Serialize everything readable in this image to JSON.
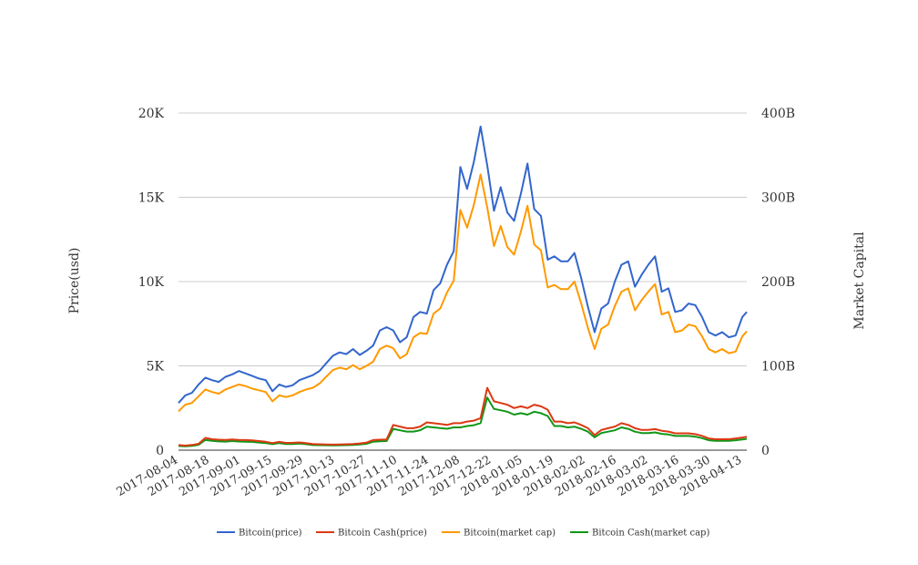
{
  "chart_data": {
    "type": "line",
    "title": "",
    "xlabel": "",
    "ylabel": "Price(usd)",
    "y2label": "Market Capital",
    "x_ticks": [
      "2017-08-04",
      "2017-08-18",
      "2017-09-01",
      "2017-09-15",
      "2017-09-29",
      "2017-10-13",
      "2017-10-27",
      "2017-11-10",
      "2017-11-24",
      "2017-12-08",
      "2017-12-22",
      "2018-01-05",
      "2018-01-19",
      "2018-02-02",
      "2018-02-16",
      "2018-03-02",
      "2018-03-16",
      "2018-03-30",
      "2018-04-13"
    ],
    "x_range": [
      "2017-08-04",
      "2018-04-15"
    ],
    "y_ticks": [
      "0",
      "5K",
      "10K",
      "15K",
      "20K"
    ],
    "y_range": [
      0,
      20000
    ],
    "y2_ticks": [
      "0",
      "100B",
      "200B",
      "300B",
      "400B"
    ],
    "y2_range": [
      0,
      400
    ],
    "y2_unit": "B",
    "grid": true,
    "legend_position": "bottom",
    "x": [
      "2017-08-04",
      "2017-08-07",
      "2017-08-10",
      "2017-08-13",
      "2017-08-16",
      "2017-08-19",
      "2017-08-22",
      "2017-08-25",
      "2017-08-28",
      "2017-08-31",
      "2017-09-03",
      "2017-09-06",
      "2017-09-09",
      "2017-09-12",
      "2017-09-15",
      "2017-09-18",
      "2017-09-21",
      "2017-09-24",
      "2017-09-27",
      "2017-09-30",
      "2017-10-03",
      "2017-10-06",
      "2017-10-09",
      "2017-10-12",
      "2017-10-15",
      "2017-10-18",
      "2017-10-21",
      "2017-10-24",
      "2017-10-27",
      "2017-10-30",
      "2017-11-02",
      "2017-11-05",
      "2017-11-08",
      "2017-11-11",
      "2017-11-14",
      "2017-11-17",
      "2017-11-20",
      "2017-11-23",
      "2017-11-26",
      "2017-11-29",
      "2017-12-02",
      "2017-12-05",
      "2017-12-08",
      "2017-12-11",
      "2017-12-14",
      "2017-12-17",
      "2017-12-20",
      "2017-12-23",
      "2017-12-26",
      "2017-12-29",
      "2018-01-01",
      "2018-01-04",
      "2018-01-07",
      "2018-01-10",
      "2018-01-13",
      "2018-01-16",
      "2018-01-19",
      "2018-01-22",
      "2018-01-25",
      "2018-01-28",
      "2018-01-31",
      "2018-02-03",
      "2018-02-06",
      "2018-02-09",
      "2018-02-12",
      "2018-02-15",
      "2018-02-18",
      "2018-02-21",
      "2018-02-24",
      "2018-02-27",
      "2018-03-02",
      "2018-03-05",
      "2018-03-08",
      "2018-03-11",
      "2018-03-14",
      "2018-03-17",
      "2018-03-20",
      "2018-03-23",
      "2018-03-26",
      "2018-03-29",
      "2018-04-01",
      "2018-04-04",
      "2018-04-07",
      "2018-04-10",
      "2018-04-13",
      "2018-04-15"
    ],
    "series": [
      {
        "name": "Bitcoin(price)",
        "color": "#3366cc",
        "axis": "left",
        "values": [
          2800,
          3250,
          3400,
          3900,
          4300,
          4150,
          4050,
          4350,
          4500,
          4700,
          4550,
          4400,
          4250,
          4150,
          3500,
          3900,
          3750,
          3850,
          4150,
          4300,
          4450,
          4700,
          5150,
          5600,
          5800,
          5700,
          6000,
          5650,
          5900,
          6200,
          7100,
          7300,
          7100,
          6400,
          6700,
          7900,
          8200,
          8100,
          9500,
          9900,
          11000,
          11800,
          16800,
          15500,
          17100,
          19200,
          16900,
          14200,
          15600,
          14100,
          13600,
          15200,
          17000,
          14300,
          13900,
          11300,
          11500,
          11200,
          11200,
          11700,
          10200,
          8500,
          7000,
          8400,
          8700,
          10000,
          11000,
          11200,
          9700,
          10400,
          11000,
          11500,
          9400,
          9600,
          8200,
          8300,
          8700,
          8600,
          7900,
          7000,
          6800,
          7000,
          6700,
          6800,
          7900,
          8200
        ]
      },
      {
        "name": "Bitcoin Cash(price)",
        "color": "#dc3912",
        "axis": "left",
        "values": [
          300,
          270,
          310,
          380,
          730,
          650,
          620,
          610,
          640,
          610,
          600,
          580,
          540,
          500,
          420,
          500,
          430,
          440,
          460,
          420,
          360,
          350,
          340,
          330,
          340,
          350,
          370,
          400,
          450,
          600,
          620,
          640,
          1500,
          1400,
          1300,
          1300,
          1400,
          1650,
          1600,
          1550,
          1500,
          1600,
          1600,
          1700,
          1750,
          1900,
          3700,
          2900,
          2800,
          2700,
          2500,
          2600,
          2500,
          2700,
          2600,
          2400,
          1700,
          1700,
          1600,
          1650,
          1500,
          1300,
          900,
          1200,
          1300,
          1400,
          1600,
          1500,
          1300,
          1200,
          1200,
          1250,
          1150,
          1100,
          1000,
          1000,
          1000,
          950,
          850,
          700,
          650,
          650,
          650,
          700,
          750,
          800
        ]
      },
      {
        "name": "Bitcoin(market cap)",
        "color": "#ff9900",
        "axis": "right",
        "values": [
          46,
          54,
          56,
          64,
          72,
          69,
          67,
          72,
          75,
          78,
          76,
          73,
          71,
          69,
          58,
          65,
          63,
          65,
          69,
          72,
          74,
          79,
          87,
          95,
          98,
          96,
          101,
          96,
          100,
          105,
          120,
          124,
          121,
          109,
          114,
          134,
          139,
          138,
          162,
          168,
          187,
          201,
          285,
          264,
          291,
          327,
          288,
          242,
          266,
          241,
          232,
          259,
          290,
          244,
          237,
          193,
          196,
          191,
          191,
          200,
          174,
          145,
          120,
          144,
          149,
          171,
          188,
          192,
          166,
          178,
          188,
          197,
          161,
          164,
          140,
          142,
          149,
          147,
          135,
          120,
          116,
          120,
          115,
          117,
          135,
          141
        ]
      },
      {
        "name": "Bitcoin Cash(market cap)",
        "color": "#109618",
        "axis": "right",
        "values": [
          5,
          4.5,
          5.2,
          6.4,
          12.2,
          11,
          10.4,
          10.2,
          10.8,
          10.3,
          10.1,
          9.8,
          9.1,
          8.4,
          7.1,
          8.4,
          7.3,
          7.4,
          7.8,
          7.1,
          6.1,
          5.9,
          5.8,
          5.6,
          5.8,
          5.9,
          6.3,
          6.8,
          7.6,
          10.1,
          10.5,
          10.8,
          25.3,
          23.6,
          22,
          22,
          23.7,
          27.9,
          27,
          26.2,
          25.4,
          27,
          27,
          28.7,
          29.6,
          32.1,
          62.5,
          49,
          47.3,
          45.6,
          42.2,
          43.9,
          42.2,
          45.6,
          43.9,
          40.5,
          28.7,
          28.7,
          27,
          27.9,
          25.3,
          21.9,
          15.2,
          20.3,
          21.9,
          23.6,
          27,
          25.3,
          21.9,
          20.3,
          20.3,
          21.1,
          19.4,
          18.6,
          16.9,
          16.9,
          16.9,
          16,
          14.3,
          11.8,
          11,
          11,
          11,
          11.8,
          12.7,
          13.5
        ]
      }
    ]
  }
}
